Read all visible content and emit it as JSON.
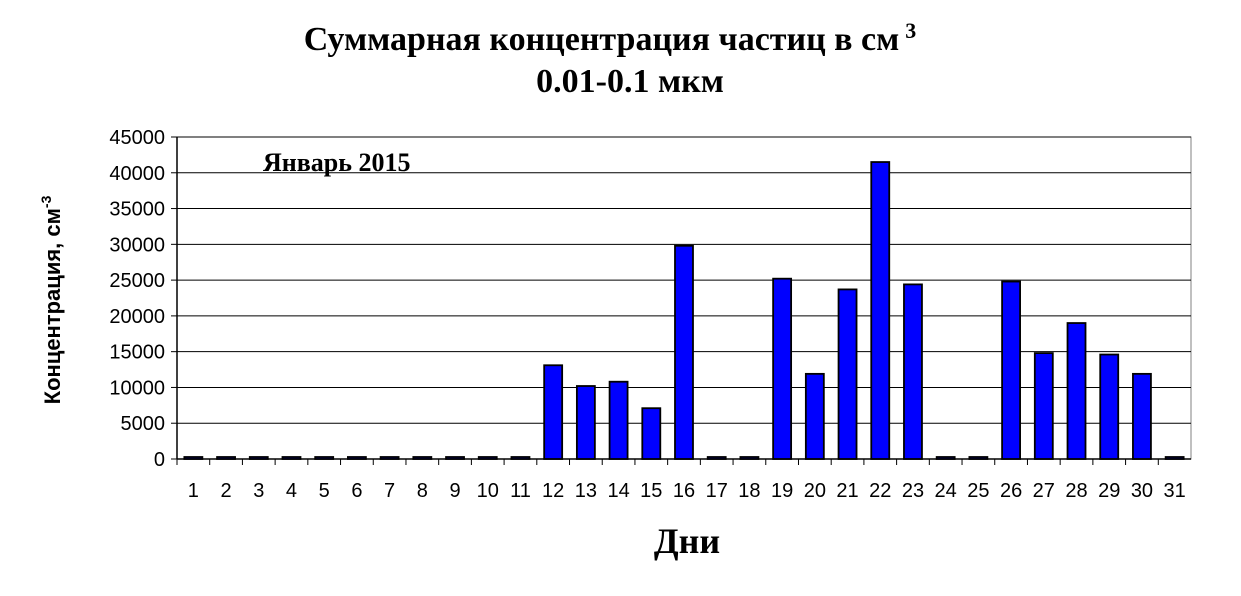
{
  "colors": {
    "bar_fill": "#0000FF",
    "bar_stroke": "#000000",
    "grid": "#000000",
    "background": "#FFFFFF"
  },
  "chart_data": {
    "type": "bar",
    "title_line1": "Суммарная концентрация частиц  в см",
    "title_superscript": "3",
    "title_line2": "0.01-0.1 мкм",
    "annotation": "Январь 2015",
    "xlabel": "Дни",
    "ylabel": "Концентрация,  см",
    "ylabel_superscript": "-3",
    "ylim": [
      0,
      45000
    ],
    "ytick_step": 5000,
    "yticks": [
      "0",
      "5000",
      "10000",
      "15000",
      "20000",
      "25000",
      "30000",
      "35000",
      "40000",
      "45000"
    ],
    "grid": true,
    "legend": false,
    "categories": [
      "1",
      "2",
      "3",
      "4",
      "5",
      "6",
      "7",
      "8",
      "9",
      "10",
      "11",
      "12",
      "13",
      "14",
      "15",
      "16",
      "17",
      "18",
      "19",
      "20",
      "21",
      "22",
      "23",
      "24",
      "25",
      "26",
      "27",
      "28",
      "29",
      "30",
      "31"
    ],
    "values": [
      0,
      0,
      0,
      0,
      0,
      0,
      0,
      0,
      0,
      0,
      0,
      13100,
      10200,
      10800,
      7100,
      29800,
      0,
      0,
      25200,
      11900,
      23700,
      41500,
      24400,
      0,
      0,
      24800,
      14800,
      19000,
      14600,
      11900,
      0
    ]
  }
}
